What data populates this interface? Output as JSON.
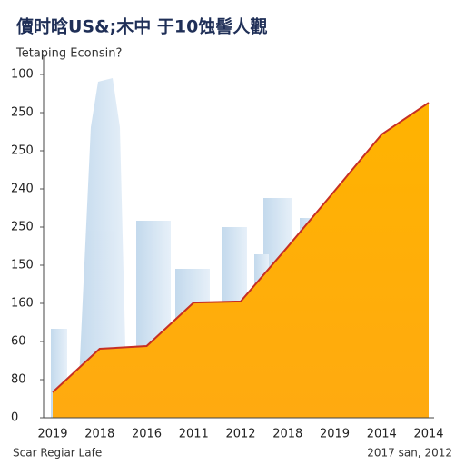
{
  "chart_data": {
    "type": "area",
    "title": "儥时晗US&;木中 于10蚀髻人觀",
    "subtitle": "Tetaping Econsin?",
    "footer_left": "Scar Regiar Lafe",
    "footer_right": "2017 san, 2012",
    "categories": [
      "2019",
      "2018",
      "2016",
      "2011",
      "2012",
      "2018",
      "2019",
      "2014",
      "2014"
    ],
    "values": [
      0.67,
      1.81,
      1.88,
      3.02,
      3.05,
      4.48,
      5.95,
      7.43,
      8.26
    ],
    "color": "#ffb000",
    "line_color": "#c62f24",
    "ylim": [
      0,
      9
    ],
    "yticks": [
      0,
      {
        "value": 1,
        "label": "80"
      },
      {
        "value": 2,
        "label": "60"
      },
      {
        "value": 3,
        "label": "160"
      },
      {
        "value": 4,
        "label": "150"
      },
      {
        "value": 5,
        "label": "250"
      },
      {
        "value": 6,
        "label": "240"
      },
      {
        "value": 7,
        "label": "250"
      },
      {
        "value": 8,
        "label": "250"
      },
      {
        "value": 9,
        "label": "100"
      }
    ]
  }
}
